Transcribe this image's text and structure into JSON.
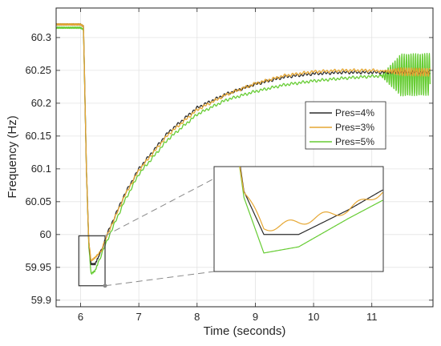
{
  "chart_data": {
    "type": "line",
    "xlabel": "Time (seconds)",
    "ylabel": "Frequency (Hz)",
    "xlim": [
      5.58,
      12.05
    ],
    "ylim": [
      59.89,
      60.345
    ],
    "xticks": [
      6,
      7,
      8,
      9,
      10,
      11
    ],
    "yticks": [
      59.9,
      59.95,
      60,
      60.05,
      60.1,
      60.15,
      60.2,
      60.25,
      60.3
    ],
    "ytick_labels": [
      "59.9",
      "59.95",
      "60",
      "60.05",
      "60.1",
      "60.15",
      "60.2",
      "60.25",
      "60.3"
    ],
    "grid": true,
    "legend_position": "center-right",
    "series": [
      {
        "name": "Pres=4%",
        "color": "#2b2b2b",
        "x": [
          5.58,
          6.0,
          6.05,
          6.1,
          6.14,
          6.18,
          6.25,
          6.35,
          6.5,
          6.75,
          7.0,
          7.5,
          8.0,
          8.5,
          9.0,
          9.5,
          10.0,
          10.5,
          11.0,
          11.5,
          12.0
        ],
        "y": [
          60.32,
          60.32,
          60.317,
          60.1,
          59.99,
          59.955,
          59.955,
          59.975,
          60.01,
          60.06,
          60.1,
          60.155,
          60.193,
          60.214,
          60.229,
          60.24,
          60.245,
          60.247,
          60.247,
          60.247,
          60.247
        ]
      },
      {
        "name": "Pres=3%",
        "color": "#e6a733",
        "x": [
          5.58,
          6.0,
          6.05,
          6.1,
          6.14,
          6.18,
          6.25,
          6.35,
          6.5,
          6.75,
          7.0,
          7.5,
          8.0,
          8.5,
          9.0,
          9.5,
          10.0,
          10.5,
          11.0,
          11.5,
          12.0
        ],
        "y": [
          60.32,
          60.32,
          60.317,
          60.1,
          59.99,
          59.96,
          59.965,
          59.975,
          60.008,
          60.058,
          60.098,
          60.152,
          60.19,
          60.213,
          60.23,
          60.242,
          60.248,
          60.25,
          60.25,
          60.248,
          60.247
        ]
      },
      {
        "name": "Pres=5%",
        "color": "#66cc33",
        "x": [
          5.58,
          6.0,
          6.05,
          6.1,
          6.14,
          6.18,
          6.25,
          6.35,
          6.5,
          6.75,
          7.0,
          7.5,
          8.0,
          8.5,
          9.0,
          9.5,
          10.0,
          10.5,
          11.0,
          11.5,
          12.0
        ],
        "y": [
          60.315,
          60.315,
          60.312,
          60.1,
          59.985,
          59.94,
          59.945,
          59.968,
          60.0,
          60.05,
          60.092,
          60.145,
          60.183,
          60.205,
          60.218,
          60.228,
          60.234,
          60.238,
          60.241,
          60.243,
          60.244
        ]
      }
    ],
    "zoom_box": {
      "xlim": [
        5.97,
        6.42
      ],
      "ylim": [
        59.922,
        59.998
      ]
    }
  }
}
